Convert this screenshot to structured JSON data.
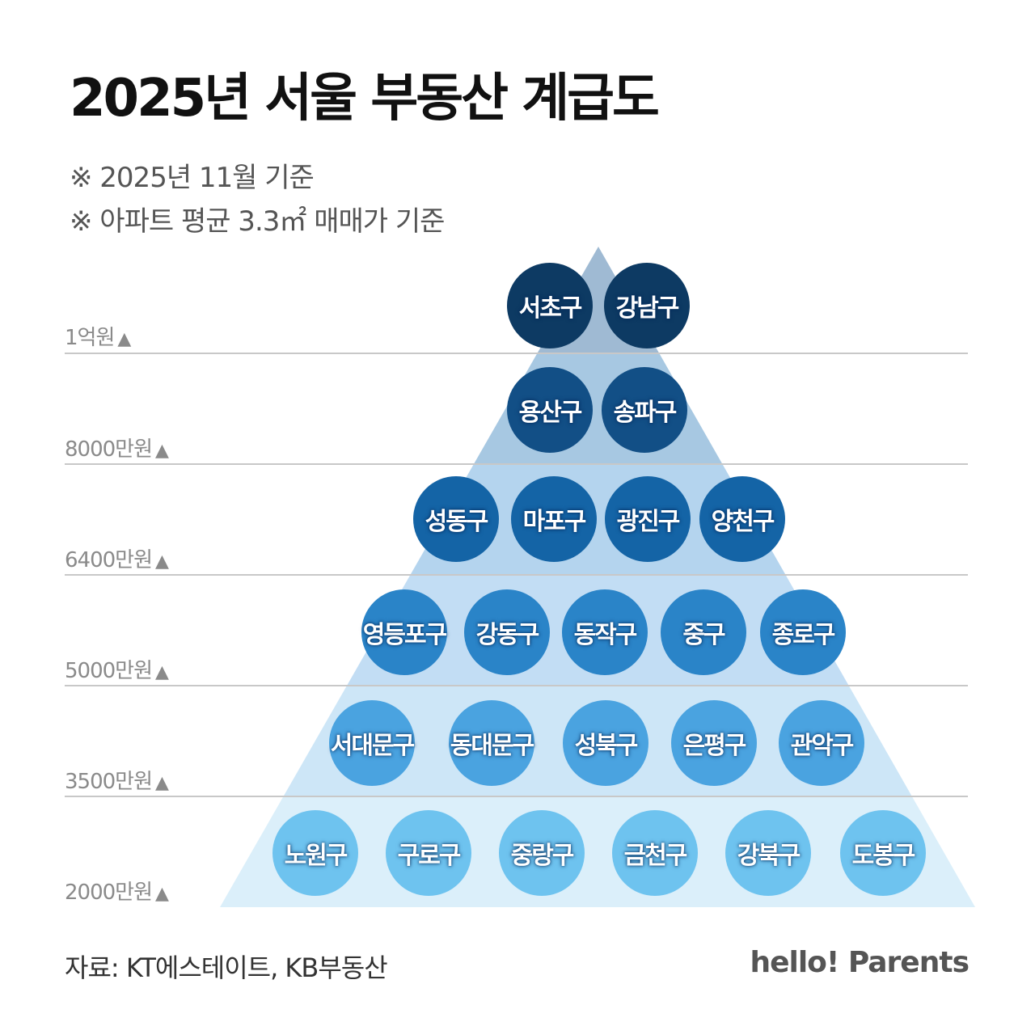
{
  "title": "2025년 서울 부동산 계급도",
  "notes": [
    "※ 2025년 11월 기준",
    "※ 아파트 평균 3.3㎡ 매매가 기준"
  ],
  "levels": [
    {
      "label": "1억원",
      "districts": [
        "서초구",
        "강남구"
      ]
    },
    {
      "label": "8000만원",
      "districts": [
        "용산구",
        "송파구"
      ]
    },
    {
      "label": "6400만원",
      "districts": [
        "성동구",
        "마포구",
        "광진구",
        "양천구"
      ]
    },
    {
      "label": "5000만원",
      "districts": [
        "영등포구",
        "강동구",
        "동작구",
        "중구",
        "종로구"
      ]
    },
    {
      "label": "3500만원",
      "districts": [
        "서대문구",
        "동대문구",
        "성북구",
        "은평구",
        "관악구"
      ]
    },
    {
      "label": "2000만원",
      "districts": [
        "노원구",
        "구로구",
        "중랑구",
        "금천구",
        "강북구",
        "도봉구"
      ]
    }
  ],
  "level_marker": "▲",
  "source": "자료: KT에스테이트, KB부동산",
  "brand": "hello! Parents",
  "colors": {
    "band_fills": [
      "#9fbad3",
      "#a7c8e2",
      "#b4d4ee",
      "#c2ddf4",
      "#cde6f7",
      "#dbeffa"
    ],
    "circle_fills": [
      "#0d3a63",
      "#124f86",
      "#1464a6",
      "#2a84c8",
      "#4aa3e0",
      "#6ec3ef"
    ],
    "grid_line": "#c8c8c8"
  }
}
